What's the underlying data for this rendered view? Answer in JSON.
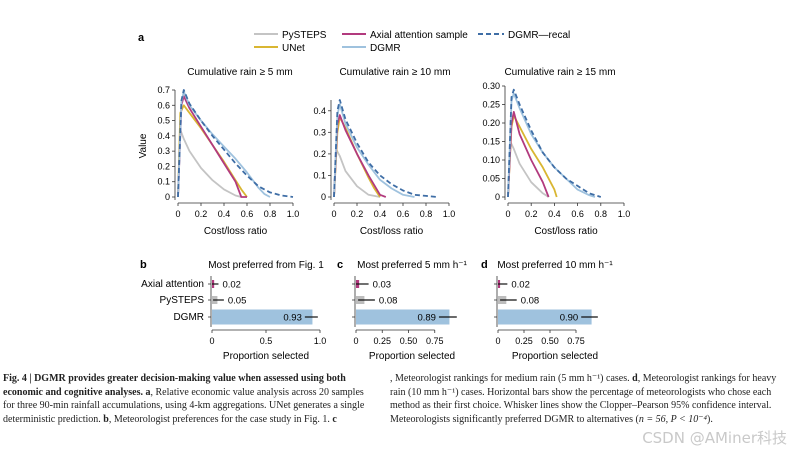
{
  "colors": {
    "pysteps": "#c4c4c4",
    "unet": "#d9b632",
    "axial": "#b23a7e",
    "dgmr": "#9fc2de",
    "dgmr_recal": "#3f6ea6",
    "bar_pysteps": "#bdbdbd",
    "bar_dgmr": "#9fc2de"
  },
  "panel_a": {
    "label": "a",
    "legend": [
      "PySTEPS",
      "UNet",
      "Axial attention sample",
      "DGMR",
      "DGMR—recal"
    ],
    "ylabel": "Value",
    "xlabel": "Cost/loss ratio"
  },
  "chart_data": [
    {
      "type": "line",
      "title": "Cumulative rain ≥ 5 mm",
      "xlabel": "Cost/loss ratio",
      "ylabel": "Value",
      "xlim": [
        0,
        1.0
      ],
      "ylim": [
        0,
        0.7
      ],
      "xticks": [
        "0",
        "0.2",
        "0.4",
        "0.6",
        "0.8",
        "1.0"
      ],
      "yticks": [
        "0",
        "0.1",
        "0.2",
        "0.3",
        "0.4",
        "0.5",
        "0.6",
        "0.7"
      ],
      "series": [
        {
          "name": "PySTEPS",
          "x": [
            0.0,
            0.02,
            0.05,
            0.1,
            0.2,
            0.3,
            0.4,
            0.5,
            0.55
          ],
          "y": [
            0.0,
            0.44,
            0.38,
            0.3,
            0.19,
            0.11,
            0.05,
            0.01,
            0.0
          ]
        },
        {
          "name": "UNet",
          "x": [
            0.0,
            0.02,
            0.05,
            0.1,
            0.2,
            0.3,
            0.4,
            0.5,
            0.55,
            0.6
          ],
          "y": [
            0.0,
            0.55,
            0.6,
            0.55,
            0.45,
            0.34,
            0.23,
            0.11,
            0.05,
            0.0
          ]
        },
        {
          "name": "Axial attention sample",
          "x": [
            0.0,
            0.03,
            0.05,
            0.1,
            0.2,
            0.3,
            0.4,
            0.5,
            0.55,
            0.6
          ],
          "y": [
            0.0,
            0.6,
            0.66,
            0.58,
            0.46,
            0.34,
            0.22,
            0.1,
            0.0,
            0.0
          ]
        },
        {
          "name": "DGMR",
          "x": [
            0.0,
            0.03,
            0.05,
            0.1,
            0.2,
            0.3,
            0.4,
            0.5,
            0.6,
            0.7,
            0.75,
            0.8
          ],
          "y": [
            0.0,
            0.62,
            0.69,
            0.6,
            0.5,
            0.41,
            0.33,
            0.25,
            0.16,
            0.06,
            0.02,
            0.0
          ]
        },
        {
          "name": "DGMR—recal",
          "x": [
            0.0,
            0.03,
            0.05,
            0.1,
            0.2,
            0.3,
            0.4,
            0.5,
            0.6,
            0.7,
            0.8,
            0.9,
            1.0
          ],
          "y": [
            0.0,
            0.63,
            0.7,
            0.61,
            0.5,
            0.4,
            0.31,
            0.22,
            0.14,
            0.07,
            0.03,
            0.01,
            0.0
          ]
        }
      ]
    },
    {
      "type": "line",
      "title": "Cumulative rain ≥ 10 mm",
      "xlabel": "Cost/loss ratio",
      "ylabel": "",
      "xlim": [
        0,
        1.0
      ],
      "ylim": [
        0,
        0.45
      ],
      "xticks": [
        "0",
        "0.2",
        "0.4",
        "0.6",
        "0.8",
        "1.0"
      ],
      "yticks": [
        "0",
        "0.1",
        "0.2",
        "0.3",
        "0.4"
      ],
      "series": [
        {
          "name": "PySTEPS",
          "x": [
            0.0,
            0.02,
            0.05,
            0.1,
            0.2,
            0.3,
            0.4
          ],
          "y": [
            0.0,
            0.22,
            0.19,
            0.12,
            0.05,
            0.01,
            0.0
          ]
        },
        {
          "name": "UNet",
          "x": [
            0.0,
            0.03,
            0.05,
            0.1,
            0.2,
            0.3,
            0.35,
            0.4
          ],
          "y": [
            0.0,
            0.3,
            0.37,
            0.32,
            0.2,
            0.09,
            0.04,
            0.0
          ]
        },
        {
          "name": "Axial attention sample",
          "x": [
            0.0,
            0.03,
            0.05,
            0.1,
            0.2,
            0.3,
            0.4,
            0.45
          ],
          "y": [
            0.0,
            0.34,
            0.38,
            0.31,
            0.2,
            0.1,
            0.01,
            0.0
          ]
        },
        {
          "name": "DGMR",
          "x": [
            0.0,
            0.03,
            0.05,
            0.1,
            0.2,
            0.3,
            0.4,
            0.5,
            0.6,
            0.7
          ],
          "y": [
            0.0,
            0.38,
            0.43,
            0.34,
            0.23,
            0.15,
            0.08,
            0.04,
            0.01,
            0.0
          ]
        },
        {
          "name": "DGMR—recal",
          "x": [
            0.0,
            0.03,
            0.05,
            0.1,
            0.2,
            0.3,
            0.4,
            0.5,
            0.6,
            0.7,
            0.8,
            0.9
          ],
          "y": [
            0.0,
            0.4,
            0.45,
            0.36,
            0.25,
            0.16,
            0.1,
            0.06,
            0.03,
            0.01,
            0.005,
            0.0
          ]
        }
      ]
    },
    {
      "type": "line",
      "title": "Cumulative rain ≥ 15 mm",
      "xlabel": "Cost/loss ratio",
      "ylabel": "",
      "xlim": [
        0,
        1.0
      ],
      "ylim": [
        0,
        0.3
      ],
      "xticks": [
        "0",
        "0.2",
        "0.4",
        "0.6",
        "0.8",
        "1.0"
      ],
      "yticks": [
        "0",
        "0.05",
        "0.10",
        "0.15",
        "0.20",
        "0.25",
        "0.30"
      ],
      "series": [
        {
          "name": "PySTEPS",
          "x": [
            0.0,
            0.02,
            0.05,
            0.1,
            0.2,
            0.3,
            0.35
          ],
          "y": [
            0.0,
            0.15,
            0.13,
            0.09,
            0.04,
            0.01,
            0.0
          ]
        },
        {
          "name": "UNet",
          "x": [
            0.0,
            0.03,
            0.05,
            0.1,
            0.2,
            0.3,
            0.4,
            0.42
          ],
          "y": [
            0.0,
            0.19,
            0.22,
            0.19,
            0.13,
            0.08,
            0.02,
            0.0
          ]
        },
        {
          "name": "Axial attention sample",
          "x": [
            0.0,
            0.03,
            0.05,
            0.1,
            0.2,
            0.3,
            0.35
          ],
          "y": [
            0.0,
            0.2,
            0.23,
            0.17,
            0.1,
            0.04,
            0.0
          ]
        },
        {
          "name": "DGMR",
          "x": [
            0.0,
            0.03,
            0.05,
            0.1,
            0.2,
            0.3,
            0.4,
            0.5,
            0.6,
            0.7,
            0.75
          ],
          "y": [
            0.0,
            0.26,
            0.28,
            0.24,
            0.17,
            0.12,
            0.08,
            0.05,
            0.02,
            0.005,
            0.0
          ]
        },
        {
          "name": "DGMR—recal",
          "x": [
            0.0,
            0.03,
            0.05,
            0.1,
            0.2,
            0.3,
            0.4,
            0.5,
            0.6,
            0.7,
            0.8
          ],
          "y": [
            0.0,
            0.27,
            0.29,
            0.25,
            0.18,
            0.12,
            0.08,
            0.05,
            0.03,
            0.01,
            0.0
          ]
        }
      ]
    },
    {
      "type": "bar",
      "label": "b",
      "title": "Most preferred from Fig. 1",
      "xlabel": "Proportion selected",
      "categories": [
        "Axial attention",
        "PySTEPS",
        "DGMR"
      ],
      "values": [
        0.02,
        0.05,
        0.93
      ],
      "value_labels": [
        "0.02",
        "0.05",
        "0.93"
      ],
      "err_low": [
        0.0,
        0.01,
        0.86
      ],
      "err_high": [
        0.06,
        0.11,
        0.98
      ],
      "xlim": [
        0,
        1.0
      ],
      "xticks": [
        "0",
        "0.5",
        "1.0"
      ]
    },
    {
      "type": "bar",
      "label": "c",
      "title": "Most preferred 5 mm h⁻¹",
      "xlabel": "Proportion selected",
      "categories": [
        "Axial attention",
        "PySTEPS",
        "DGMR"
      ],
      "values": [
        0.03,
        0.08,
        0.89
      ],
      "value_labels": [
        "0.03",
        "0.08",
        "0.89"
      ],
      "err_low": [
        0.0,
        0.02,
        0.79
      ],
      "err_high": [
        0.12,
        0.18,
        0.96
      ],
      "xlim": [
        0,
        1.0
      ],
      "xticks": [
        "0",
        "0.25",
        "0.50",
        "0.75"
      ]
    },
    {
      "type": "bar",
      "label": "d",
      "title": "Most preferred 10 mm h⁻¹",
      "xlabel": "Proportion selected",
      "categories": [
        "Axial attention",
        "PySTEPS",
        "DGMR"
      ],
      "values": [
        0.02,
        0.08,
        0.9
      ],
      "value_labels": [
        "0.02",
        "0.08",
        "0.90"
      ],
      "err_low": [
        0.0,
        0.02,
        0.8
      ],
      "err_high": [
        0.09,
        0.18,
        0.96
      ],
      "xlim": [
        0,
        1.0
      ],
      "xticks": [
        "0",
        "0.25",
        "0.50",
        "0.75"
      ]
    }
  ],
  "caption": {
    "bold_title": "Fig. 4 | DGMR provides greater decision-making value when assessed using both economic and cognitive analyses.",
    "a_label": "a",
    "a_text": ", Relative economic value analysis across 20 samples for three 90-min rainfall accumulations, using 4-km aggregations. UNet generates a single deterministic prediction.",
    "b_label": "b",
    "b_text": ", Meteorologist preferences for the case study in Fig. 1.",
    "c_label": "c",
    "c_text_1": ", Meteorologist rankings for medium rain (5 mm h⁻¹) cases.",
    "d_label": "d",
    "d_text": ", Meteorologist rankings for heavy rain (10 mm h⁻¹) cases. Horizontal bars show the percentage of meteorologists who chose each method as their first choice. Whisker lines show the Clopper–Pearson 95% confidence interval.",
    "sig_text": "Meteorologists significantly preferred DGMR to alternatives (",
    "stat": "n = 56, P < 10⁻⁴",
    "stat_end": ")."
  },
  "watermark": "CSDN @AMiner科技"
}
